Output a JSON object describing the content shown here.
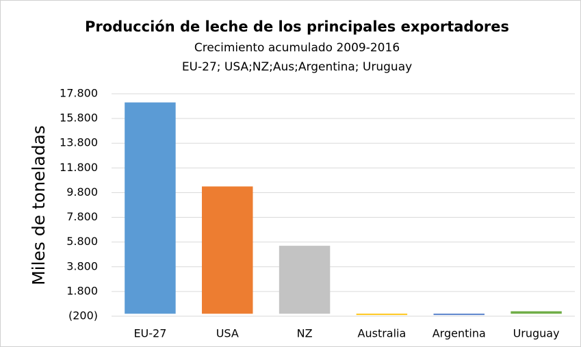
{
  "chart_data": {
    "type": "bar",
    "title": "Producción de leche de los principales exportadores",
    "subtitle": [
      "Crecimiento acumulado 2009-2016",
      "EU-27; USA;NZ;Aus;Argentina; Uruguay"
    ],
    "y_label": "Miles de toneladas",
    "categories": [
      "EU-27",
      "USA",
      "NZ",
      "Australia",
      "Argentina",
      "Uruguay"
    ],
    "values": [
      17100,
      10300,
      5500,
      -100,
      -100,
      200
    ],
    "colors": [
      "#5b9bd5",
      "#ed7d31",
      "#c3c3c3",
      "#ffc000",
      "#4472c4",
      "#70ad47"
    ],
    "ylim": [
      -200,
      17800
    ],
    "yticks": [
      {
        "value": -200,
        "label": "(200)"
      },
      {
        "value": 1800,
        "label": "1.800"
      },
      {
        "value": 3800,
        "label": "3.800"
      },
      {
        "value": 5800,
        "label": "5.800"
      },
      {
        "value": 7800,
        "label": "7.800"
      },
      {
        "value": 9800,
        "label": "9.800"
      },
      {
        "value": 11800,
        "label": "11.800"
      },
      {
        "value": 13800,
        "label": "13.800"
      },
      {
        "value": 15800,
        "label": "15.800"
      },
      {
        "value": 17800,
        "label": "17.800"
      }
    ],
    "grid": true
  }
}
